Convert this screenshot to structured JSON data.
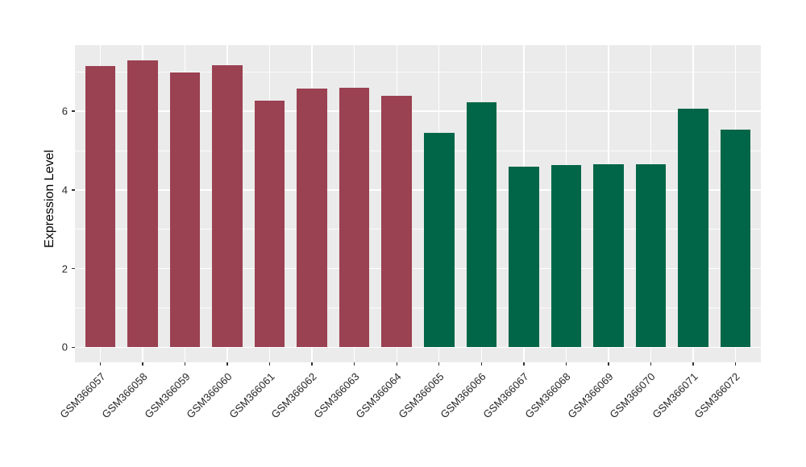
{
  "chart_data": {
    "type": "bar",
    "title": "",
    "xlabel": "",
    "ylabel": "Expression Level",
    "categories": [
      "GSM366057",
      "GSM366058",
      "GSM366059",
      "GSM366060",
      "GSM366061",
      "GSM366062",
      "GSM366063",
      "GSM366064",
      "GSM366065",
      "GSM366066",
      "GSM366067",
      "GSM366068",
      "GSM366069",
      "GSM366070",
      "GSM366071",
      "GSM366072"
    ],
    "values": [
      7.14,
      7.3,
      6.98,
      7.16,
      6.26,
      6.58,
      6.6,
      6.4,
      5.44,
      6.23,
      4.6,
      4.63,
      4.66,
      4.65,
      6.06,
      5.53
    ],
    "bar_colors": [
      "#9A4152",
      "#9A4152",
      "#9A4152",
      "#9A4152",
      "#9A4152",
      "#9A4152",
      "#9A4152",
      "#9A4152",
      "#006647",
      "#006647",
      "#006647",
      "#006647",
      "#006647",
      "#006647",
      "#006647",
      "#006647"
    ],
    "group_colors": {
      "left_group": "#9A4152",
      "right_group": "#006647"
    },
    "yticks": [
      0,
      2,
      4,
      6
    ],
    "ytick_labels": [
      "0",
      "2",
      "4",
      "6"
    ],
    "minor_yticks": [
      1,
      3,
      5,
      7
    ],
    "ylim": [
      -0.38,
      7.68
    ],
    "grid": true,
    "legend": "none",
    "panel_background": "#EBEBEB",
    "gridline_color": "#FFFFFF",
    "axis_text_color": "#262626",
    "tick_mark_color": "#333333"
  }
}
